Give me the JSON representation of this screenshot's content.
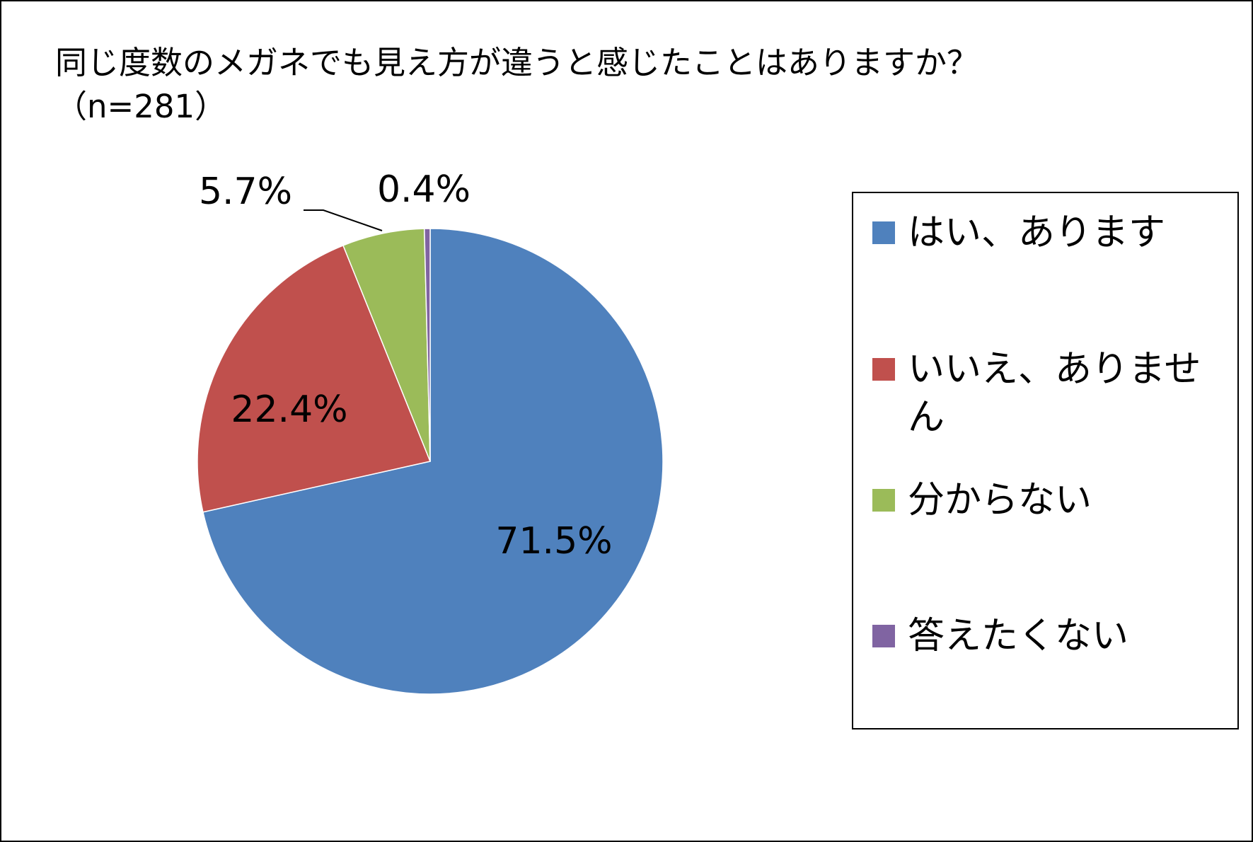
{
  "chart_data": {
    "type": "pie",
    "title": "同じ度数のメガネでも見え方が違うと感じたことはありますか？（n=281）",
    "categories": [
      "はい、あります",
      "いいえ、ありません",
      "分からない",
      "答えたくない"
    ],
    "values": [
      71.5,
      22.4,
      5.7,
      0.4
    ],
    "value_labels": [
      "71.5%",
      "22.4%",
      "5.7%",
      "0.4%"
    ],
    "colors": [
      "#4f81bd",
      "#c0504d",
      "#9bbb59",
      "#8064a2"
    ],
    "legend": "right"
  }
}
